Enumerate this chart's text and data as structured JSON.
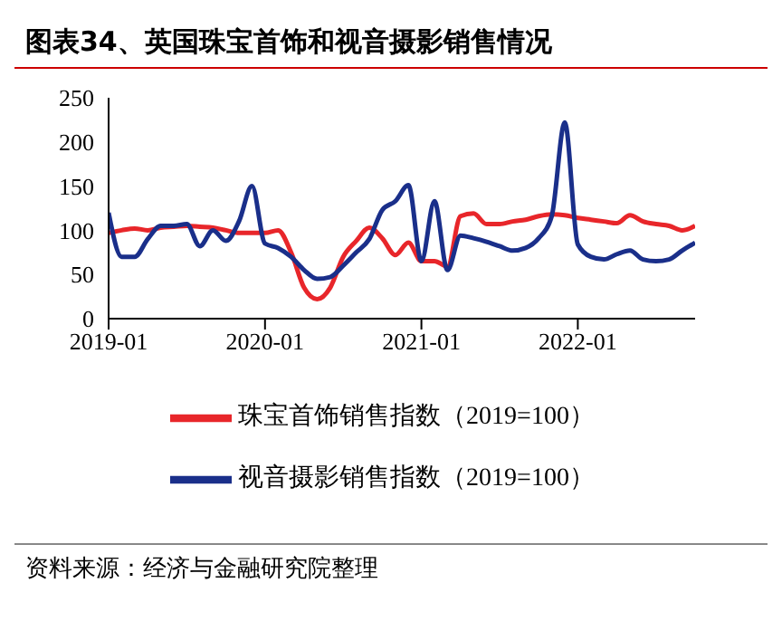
{
  "chart_data": {
    "type": "line",
    "title": "图表34、英国珠宝首饰和视音摄影销售情况",
    "x": [
      "2019-01",
      "2019-02",
      "2019-03",
      "2019-04",
      "2019-05",
      "2019-06",
      "2019-07",
      "2019-08",
      "2019-09",
      "2019-10",
      "2019-11",
      "2019-12",
      "2020-01",
      "2020-02",
      "2020-03",
      "2020-04",
      "2020-05",
      "2020-06",
      "2020-07",
      "2020-08",
      "2020-09",
      "2020-10",
      "2020-11",
      "2020-12",
      "2021-01",
      "2021-02",
      "2021-03",
      "2021-04",
      "2021-05",
      "2021-06",
      "2021-07",
      "2021-08",
      "2021-09",
      "2021-10",
      "2021-11",
      "2021-12",
      "2022-01",
      "2022-02",
      "2022-03",
      "2022-04",
      "2022-05",
      "2022-06",
      "2022-07",
      "2022-08",
      "2022-09",
      "2022-10"
    ],
    "series": [
      {
        "name": "珠宝首饰销售指数（2019=100）",
        "color": "#e8262a",
        "values": [
          97,
          100,
          102,
          100,
          103,
          104,
          105,
          104,
          103,
          100,
          97,
          97,
          97,
          100,
          75,
          35,
          22,
          35,
          70,
          88,
          103,
          91,
          72,
          86,
          65,
          65,
          59,
          116,
          119,
          107,
          107,
          110,
          112,
          116,
          118,
          117,
          114,
          112,
          110,
          108,
          117,
          110,
          107,
          105,
          100,
          105
        ]
      },
      {
        "name": "视音摄影销售指数（2019=100）",
        "color": "#1a2f8a",
        "values": [
          120,
          70,
          70,
          90,
          105,
          105,
          107,
          82,
          100,
          88,
          110,
          150,
          85,
          80,
          70,
          55,
          45,
          47,
          60,
          75,
          90,
          123,
          133,
          151,
          65,
          133,
          55,
          94,
          91,
          87,
          82,
          77,
          80,
          91,
          116,
          222,
          84,
          70,
          67,
          73,
          77,
          67,
          65,
          67,
          77,
          86
        ]
      }
    ],
    "xlim": [
      "2019-01",
      "2022-10"
    ],
    "xticks": [
      "2019-01",
      "2020-01",
      "2021-01",
      "2022-01"
    ],
    "ylim": [
      0,
      250
    ],
    "yticks": [
      0,
      50,
      100,
      150,
      200,
      250
    ],
    "grid": false,
    "legend": "bottom",
    "marker": "none",
    "line_style": "solid",
    "annotations": [
      "资料来源：经济与金融研究院整理"
    ]
  }
}
